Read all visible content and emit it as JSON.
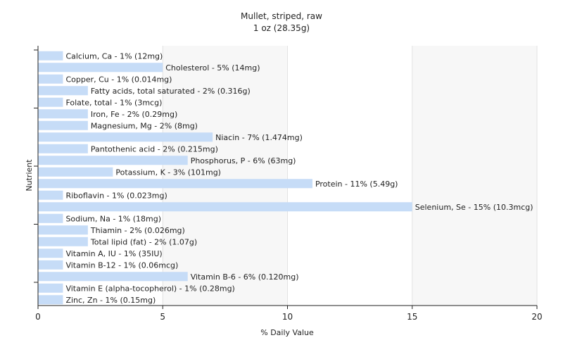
{
  "chart_data": {
    "type": "bar",
    "orientation": "horizontal",
    "title": "Mullet, striped, raw",
    "subtitle": "1 oz (28.35g)",
    "xlabel": "% Daily Value",
    "ylabel": "Nutrient",
    "xlim": [
      0,
      20
    ],
    "xticks": [
      "0",
      "5",
      "10",
      "15",
      "20"
    ],
    "grid": "vertical",
    "bar_color": "#c6dcf7",
    "categories": [
      "Calcium, Ca",
      "Cholesterol",
      "Copper, Cu",
      "Fatty acids, total saturated",
      "Folate, total",
      "Iron, Fe",
      "Magnesium, Mg",
      "Niacin",
      "Pantothenic acid",
      "Phosphorus, P",
      "Potassium, K",
      "Protein",
      "Riboflavin",
      "Selenium, Se",
      "Sodium, Na",
      "Thiamin",
      "Total lipid (fat)",
      "Vitamin A, IU",
      "Vitamin B-12",
      "Vitamin B-6",
      "Vitamin E (alpha-tocopherol)",
      "Zinc, Zn"
    ],
    "values": [
      1,
      5,
      1,
      2,
      1,
      2,
      2,
      7,
      2,
      6,
      3,
      11,
      1,
      15,
      1,
      2,
      2,
      1,
      1,
      6,
      1,
      1
    ],
    "data_labels": [
      "Calcium, Ca - 1% (12mg)",
      "Cholesterol - 5% (14mg)",
      "Copper, Cu - 1% (0.014mg)",
      "Fatty acids, total saturated - 2% (0.316g)",
      "Folate, total - 1% (3mcg)",
      "Iron, Fe - 2% (0.29mg)",
      "Magnesium, Mg - 2% (8mg)",
      "Niacin - 7% (1.474mg)",
      "Pantothenic acid - 2% (0.215mg)",
      "Phosphorus, P - 6% (63mg)",
      "Potassium, K - 3% (101mg)",
      "Protein - 11% (5.49g)",
      "Riboflavin - 1% (0.023mg)",
      "Selenium, Se - 15% (10.3mcg)",
      "Sodium, Na - 1% (18mg)",
      "Thiamin - 2% (0.026mg)",
      "Total lipid (fat) - 2% (1.07g)",
      "Vitamin A, IU - 1% (35IU)",
      "Vitamin B-12 - 1% (0.06mcg)",
      "Vitamin B-6 - 6% (0.120mg)",
      "Vitamin E (alpha-tocopherol) - 1% (0.28mg)",
      "Zinc, Zn - 1% (0.15mg)"
    ]
  }
}
